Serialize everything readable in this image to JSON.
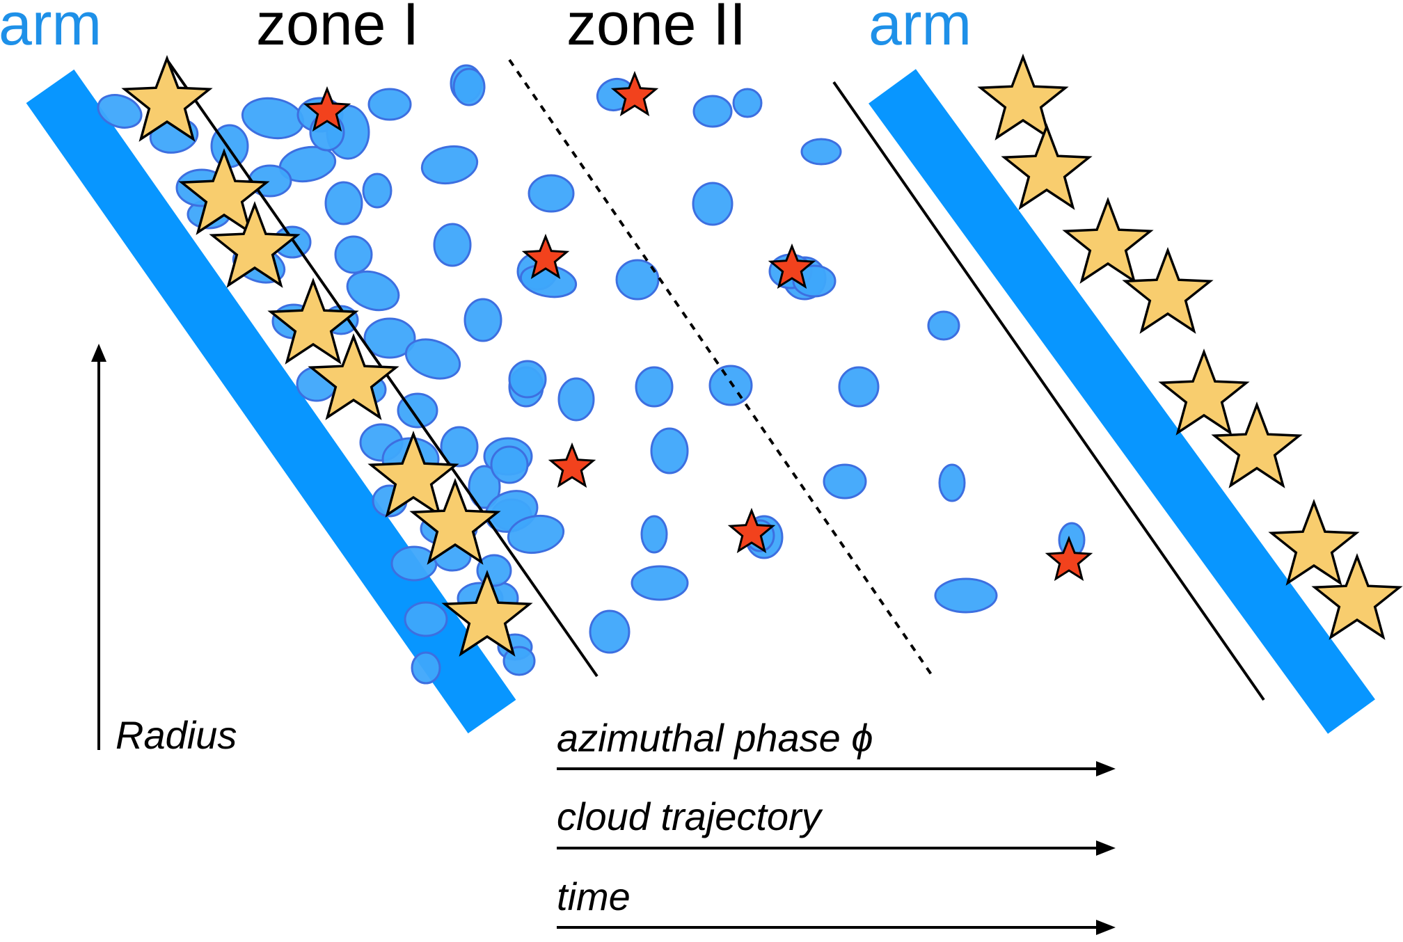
{
  "labels": {
    "arm_left": "arm",
    "zone_1": "zone I",
    "zone_2": "zone II",
    "arm_right": "arm",
    "radius": "Radius",
    "azimuthal_phase": "azimuthal phase ϕ",
    "cloud_trajectory": "cloud trajectory",
    "time": "time"
  },
  "colors": {
    "arm_band": "#0896ff",
    "arm_text": "#1e90e8",
    "cloud_fill": "#3ea6fb",
    "cloud_stroke": "#3d6fe0",
    "large_star_fill": "#f8cd6e",
    "small_star_fill": "#f2421d",
    "line": "#000000"
  },
  "icons": {
    "large_star": "large-star-icon",
    "small_star": "small-star-icon",
    "arrow": "arrow-icon"
  }
}
